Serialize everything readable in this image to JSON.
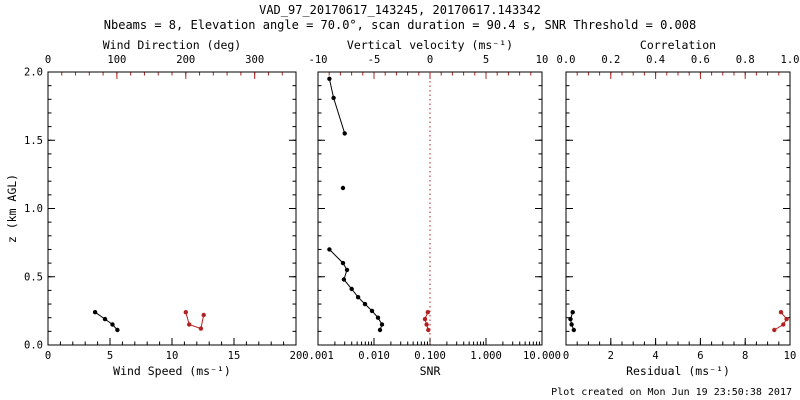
{
  "header": {
    "title": "VAD_97_20170617_143245, 20170617.143342",
    "subtitle": "Nbeams = 8, Elevation angle = 70.0°, scan duration = 90.4 s, SNR Threshold = 0.008"
  },
  "footer": {
    "created": "Plot created on Mon Jun 19 23:50:38 2017"
  },
  "colors": {
    "background": "#ffffff",
    "axis": "#000000",
    "accent_red": "#b22222"
  },
  "chart_data": [
    {
      "type": "scatter",
      "name": "wind",
      "y_axis": {
        "label": "z (km AGL)",
        "min": 0,
        "max": 2,
        "tick_values": [
          0,
          0.5,
          1,
          1.5,
          2
        ],
        "tick_labels": [
          "0.0",
          "0.5",
          "1.0",
          "1.5",
          "2.0"
        ],
        "minor_step": 0.1,
        "show_labels": true
      },
      "x_bottom": {
        "label": "Wind Speed (ms⁻¹)",
        "scale": "linear",
        "min": 0,
        "max": 20,
        "tick_values": [
          0,
          5,
          10,
          15,
          20
        ],
        "tick_labels": [
          "0",
          "5",
          "10",
          "15",
          "20"
        ],
        "minor_step": 1,
        "color": "black"
      },
      "x_top": {
        "label": "Wind Direction (deg)",
        "scale": "linear",
        "min": 0,
        "max": 360,
        "tick_values": [
          0,
          100,
          200,
          300
        ],
        "tick_labels": [
          "0",
          "100",
          "200",
          "300"
        ],
        "minor_step": 20,
        "color": "red"
      },
      "series": [
        {
          "name": "wind-speed",
          "axis": "bottom",
          "color": "black",
          "points": [
            [
              3.8,
              0.24
            ],
            [
              4.6,
              0.19
            ],
            [
              5.2,
              0.15
            ],
            [
              5.6,
              0.11
            ]
          ]
        },
        {
          "name": "wind-direction",
          "axis": "top",
          "color": "red",
          "points": [
            [
              200,
              0.24
            ],
            [
              205,
              0.15
            ],
            [
              222,
              0.12
            ],
            [
              226,
              0.22
            ]
          ]
        }
      ]
    },
    {
      "type": "scatter",
      "name": "snr",
      "y_axis": {
        "label": "",
        "min": 0,
        "max": 2,
        "tick_values": [
          0,
          0.5,
          1,
          1.5,
          2
        ],
        "tick_labels": [],
        "minor_step": 0.1,
        "show_labels": false
      },
      "x_bottom": {
        "label": "SNR",
        "scale": "log",
        "min": 0.001,
        "max": 10,
        "tick_values": [
          0.001,
          0.01,
          0.1,
          1,
          10
        ],
        "tick_labels": [
          "0.001",
          "0.010",
          "0.100",
          "1.000",
          "10.000"
        ],
        "color": "black"
      },
      "x_top": {
        "label": "Vertical velocity (ms⁻¹)",
        "scale": "linear",
        "min": -10,
        "max": 10,
        "tick_values": [
          -10,
          -5,
          0,
          5,
          10
        ],
        "tick_labels": [
          "-10",
          "-5",
          "0",
          "5",
          "10"
        ],
        "minor_step": 1,
        "color": "red"
      },
      "ref_line": {
        "axis": "top",
        "value": 0,
        "color": "red",
        "style": "dotted"
      },
      "series": [
        {
          "name": "snr-upper",
          "axis": "bottom",
          "color": "black",
          "points": [
            [
              0.0016,
              1.95
            ],
            [
              0.0019,
              1.81
            ],
            [
              0.003,
              1.55
            ]
          ]
        },
        {
          "name": "snr-mid",
          "axis": "bottom",
          "color": "black",
          "points": [
            [
              0.0028,
              1.15
            ]
          ]
        },
        {
          "name": "snr-lower",
          "axis": "bottom",
          "color": "black",
          "points": [
            [
              0.0016,
              0.7
            ],
            [
              0.0028,
              0.6
            ],
            [
              0.0033,
              0.55
            ],
            [
              0.0029,
              0.48
            ],
            [
              0.004,
              0.41
            ],
            [
              0.0052,
              0.35
            ],
            [
              0.0069,
              0.3
            ],
            [
              0.0092,
              0.25
            ],
            [
              0.0118,
              0.2
            ],
            [
              0.0139,
              0.15
            ],
            [
              0.0128,
              0.11
            ]
          ]
        },
        {
          "name": "vertical-velocity",
          "axis": "top",
          "color": "red",
          "points": [
            [
              -0.2,
              0.24
            ],
            [
              -0.45,
              0.19
            ],
            [
              -0.3,
              0.15
            ],
            [
              -0.15,
              0.11
            ]
          ]
        }
      ]
    },
    {
      "type": "scatter",
      "name": "residual",
      "y_axis": {
        "label": "",
        "min": 0,
        "max": 2,
        "tick_values": [
          0,
          0.5,
          1,
          1.5,
          2
        ],
        "tick_labels": [],
        "minor_step": 0.1,
        "show_labels": false
      },
      "x_bottom": {
        "label": "Residual (ms⁻¹)",
        "scale": "linear",
        "min": 0,
        "max": 10,
        "tick_values": [
          0,
          2,
          4,
          6,
          8,
          10
        ],
        "tick_labels": [
          "0",
          "2",
          "4",
          "6",
          "8",
          "10"
        ],
        "minor_step": 0.5,
        "color": "black"
      },
      "x_top": {
        "label": "Correlation",
        "scale": "linear",
        "min": 0,
        "max": 1,
        "tick_values": [
          0,
          0.2,
          0.4,
          0.6,
          0.8,
          1
        ],
        "tick_labels": [
          "0.0",
          "0.2",
          "0.4",
          "0.6",
          "0.8",
          "1.0"
        ],
        "minor_step": 0.05,
        "color": "red"
      },
      "series": [
        {
          "name": "residual",
          "axis": "bottom",
          "color": "black",
          "points": [
            [
              0.3,
              0.24
            ],
            [
              0.2,
              0.19
            ],
            [
              0.25,
              0.15
            ],
            [
              0.35,
              0.11
            ]
          ]
        },
        {
          "name": "correlation",
          "axis": "top",
          "color": "red",
          "points": [
            [
              0.96,
              0.24
            ],
            [
              0.985,
              0.19
            ],
            [
              0.97,
              0.15
            ],
            [
              0.93,
              0.11
            ]
          ]
        }
      ]
    }
  ]
}
